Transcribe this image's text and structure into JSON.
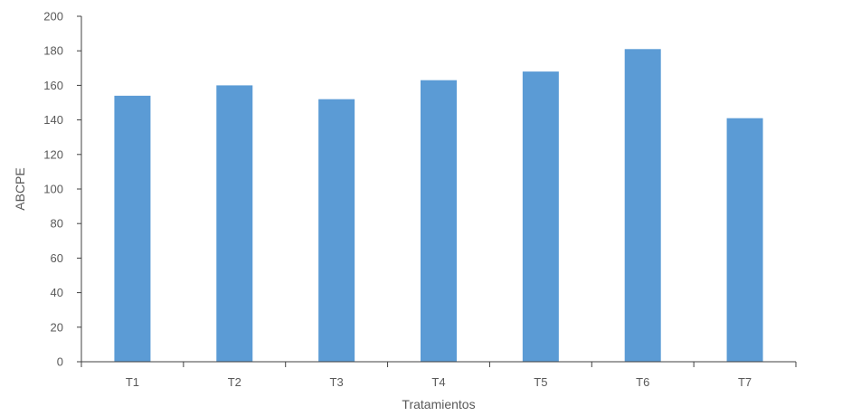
{
  "chart_data": {
    "type": "bar",
    "categories": [
      "T1",
      "T2",
      "T3",
      "T4",
      "T5",
      "T6",
      "T7"
    ],
    "values": [
      154,
      160,
      152,
      163,
      168,
      181,
      141
    ],
    "xlabel": "Tratamientos",
    "ylabel": "ABCPE",
    "ylim": [
      0,
      200
    ],
    "yticks": [
      0,
      20,
      40,
      60,
      80,
      100,
      120,
      140,
      160,
      180,
      200
    ],
    "grid": false,
    "legend": "none",
    "bar_color": "#5B9BD5",
    "axis_color": "#404040"
  }
}
